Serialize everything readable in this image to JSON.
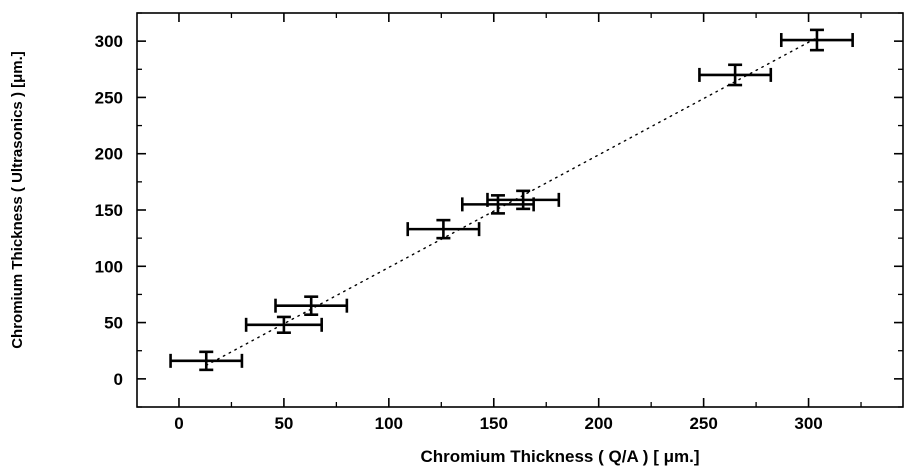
{
  "chart_data": {
    "type": "scatter",
    "title": "",
    "xlabel": "Chromium Thickness ( Q/A )  [ μm.]",
    "ylabel": "Chromium Thickness ( Ultrasonics )  [μm.]",
    "xlim": [
      -20,
      345
    ],
    "ylim": [
      -25,
      325
    ],
    "xticks": [
      0,
      50,
      100,
      150,
      200,
      250,
      300
    ],
    "yticks": [
      0,
      50,
      100,
      150,
      200,
      250,
      300
    ],
    "grid": false,
    "series": [
      {
        "marker": "error-bar-cross",
        "points": [
          {
            "x": 13,
            "y": 16,
            "xerr": 17,
            "yerr": 8
          },
          {
            "x": 50,
            "y": 48,
            "xerr": 18,
            "yerr": 7
          },
          {
            "x": 63,
            "y": 65,
            "xerr": 17,
            "yerr": 8
          },
          {
            "x": 126,
            "y": 133,
            "xerr": 17,
            "yerr": 8
          },
          {
            "x": 152,
            "y": 155,
            "xerr": 17,
            "yerr": 8
          },
          {
            "x": 164,
            "y": 159,
            "xerr": 17,
            "yerr": 8
          },
          {
            "x": 265,
            "y": 270,
            "xerr": 17,
            "yerr": 9
          },
          {
            "x": 304,
            "y": 301,
            "xerr": 17,
            "yerr": 9
          }
        ]
      }
    ],
    "fit_line": {
      "style": "dotted",
      "x": [
        13,
        304
      ],
      "y": [
        12,
        303
      ]
    }
  }
}
